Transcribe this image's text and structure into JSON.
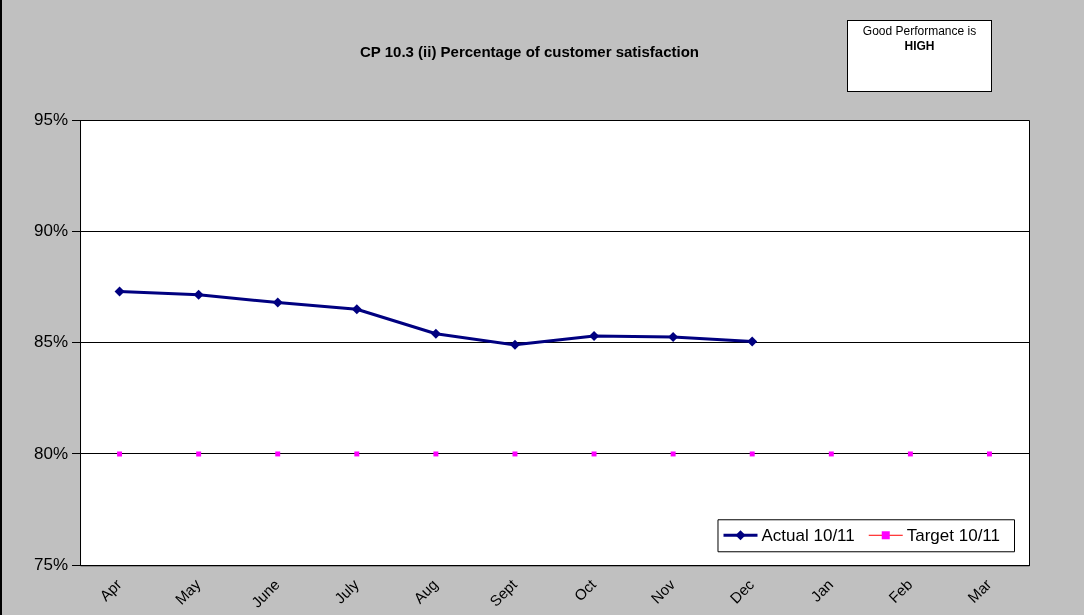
{
  "chart_data": {
    "type": "line",
    "title": "CP 10.3 (ii) Percentage of customer satisfaction",
    "annotations": [
      "Good Performance is",
      "HIGH"
    ],
    "categories": [
      "Apr",
      "May",
      "June",
      "July",
      "Aug",
      "Sept",
      "Oct",
      "Nov",
      "Dec",
      "Jan",
      "Feb",
      "Mar"
    ],
    "series": [
      {
        "name": "Actual 10/11",
        "color": "#000080",
        "marker": "diamond",
        "values": [
          87.3,
          87.15,
          86.8,
          86.5,
          85.4,
          84.9,
          85.3,
          85.25,
          85.05,
          null,
          null,
          null
        ]
      },
      {
        "name": "Target 10/11",
        "type": "scatter",
        "color": "#ff00ff",
        "marker": "square",
        "values": [
          80,
          80,
          80,
          80,
          80,
          80,
          80,
          80,
          80,
          80,
          80,
          80
        ]
      }
    ],
    "ylim": [
      75,
      95
    ],
    "yticks": [
      {
        "value": 75,
        "label": "75%"
      },
      {
        "value": 80,
        "label": "80%"
      },
      {
        "value": 85,
        "label": "85%"
      },
      {
        "value": 90,
        "label": "90%"
      },
      {
        "value": 95,
        "label": "95%"
      }
    ],
    "grid": "y",
    "legend": "bottom right",
    "line_style": "solid"
  }
}
